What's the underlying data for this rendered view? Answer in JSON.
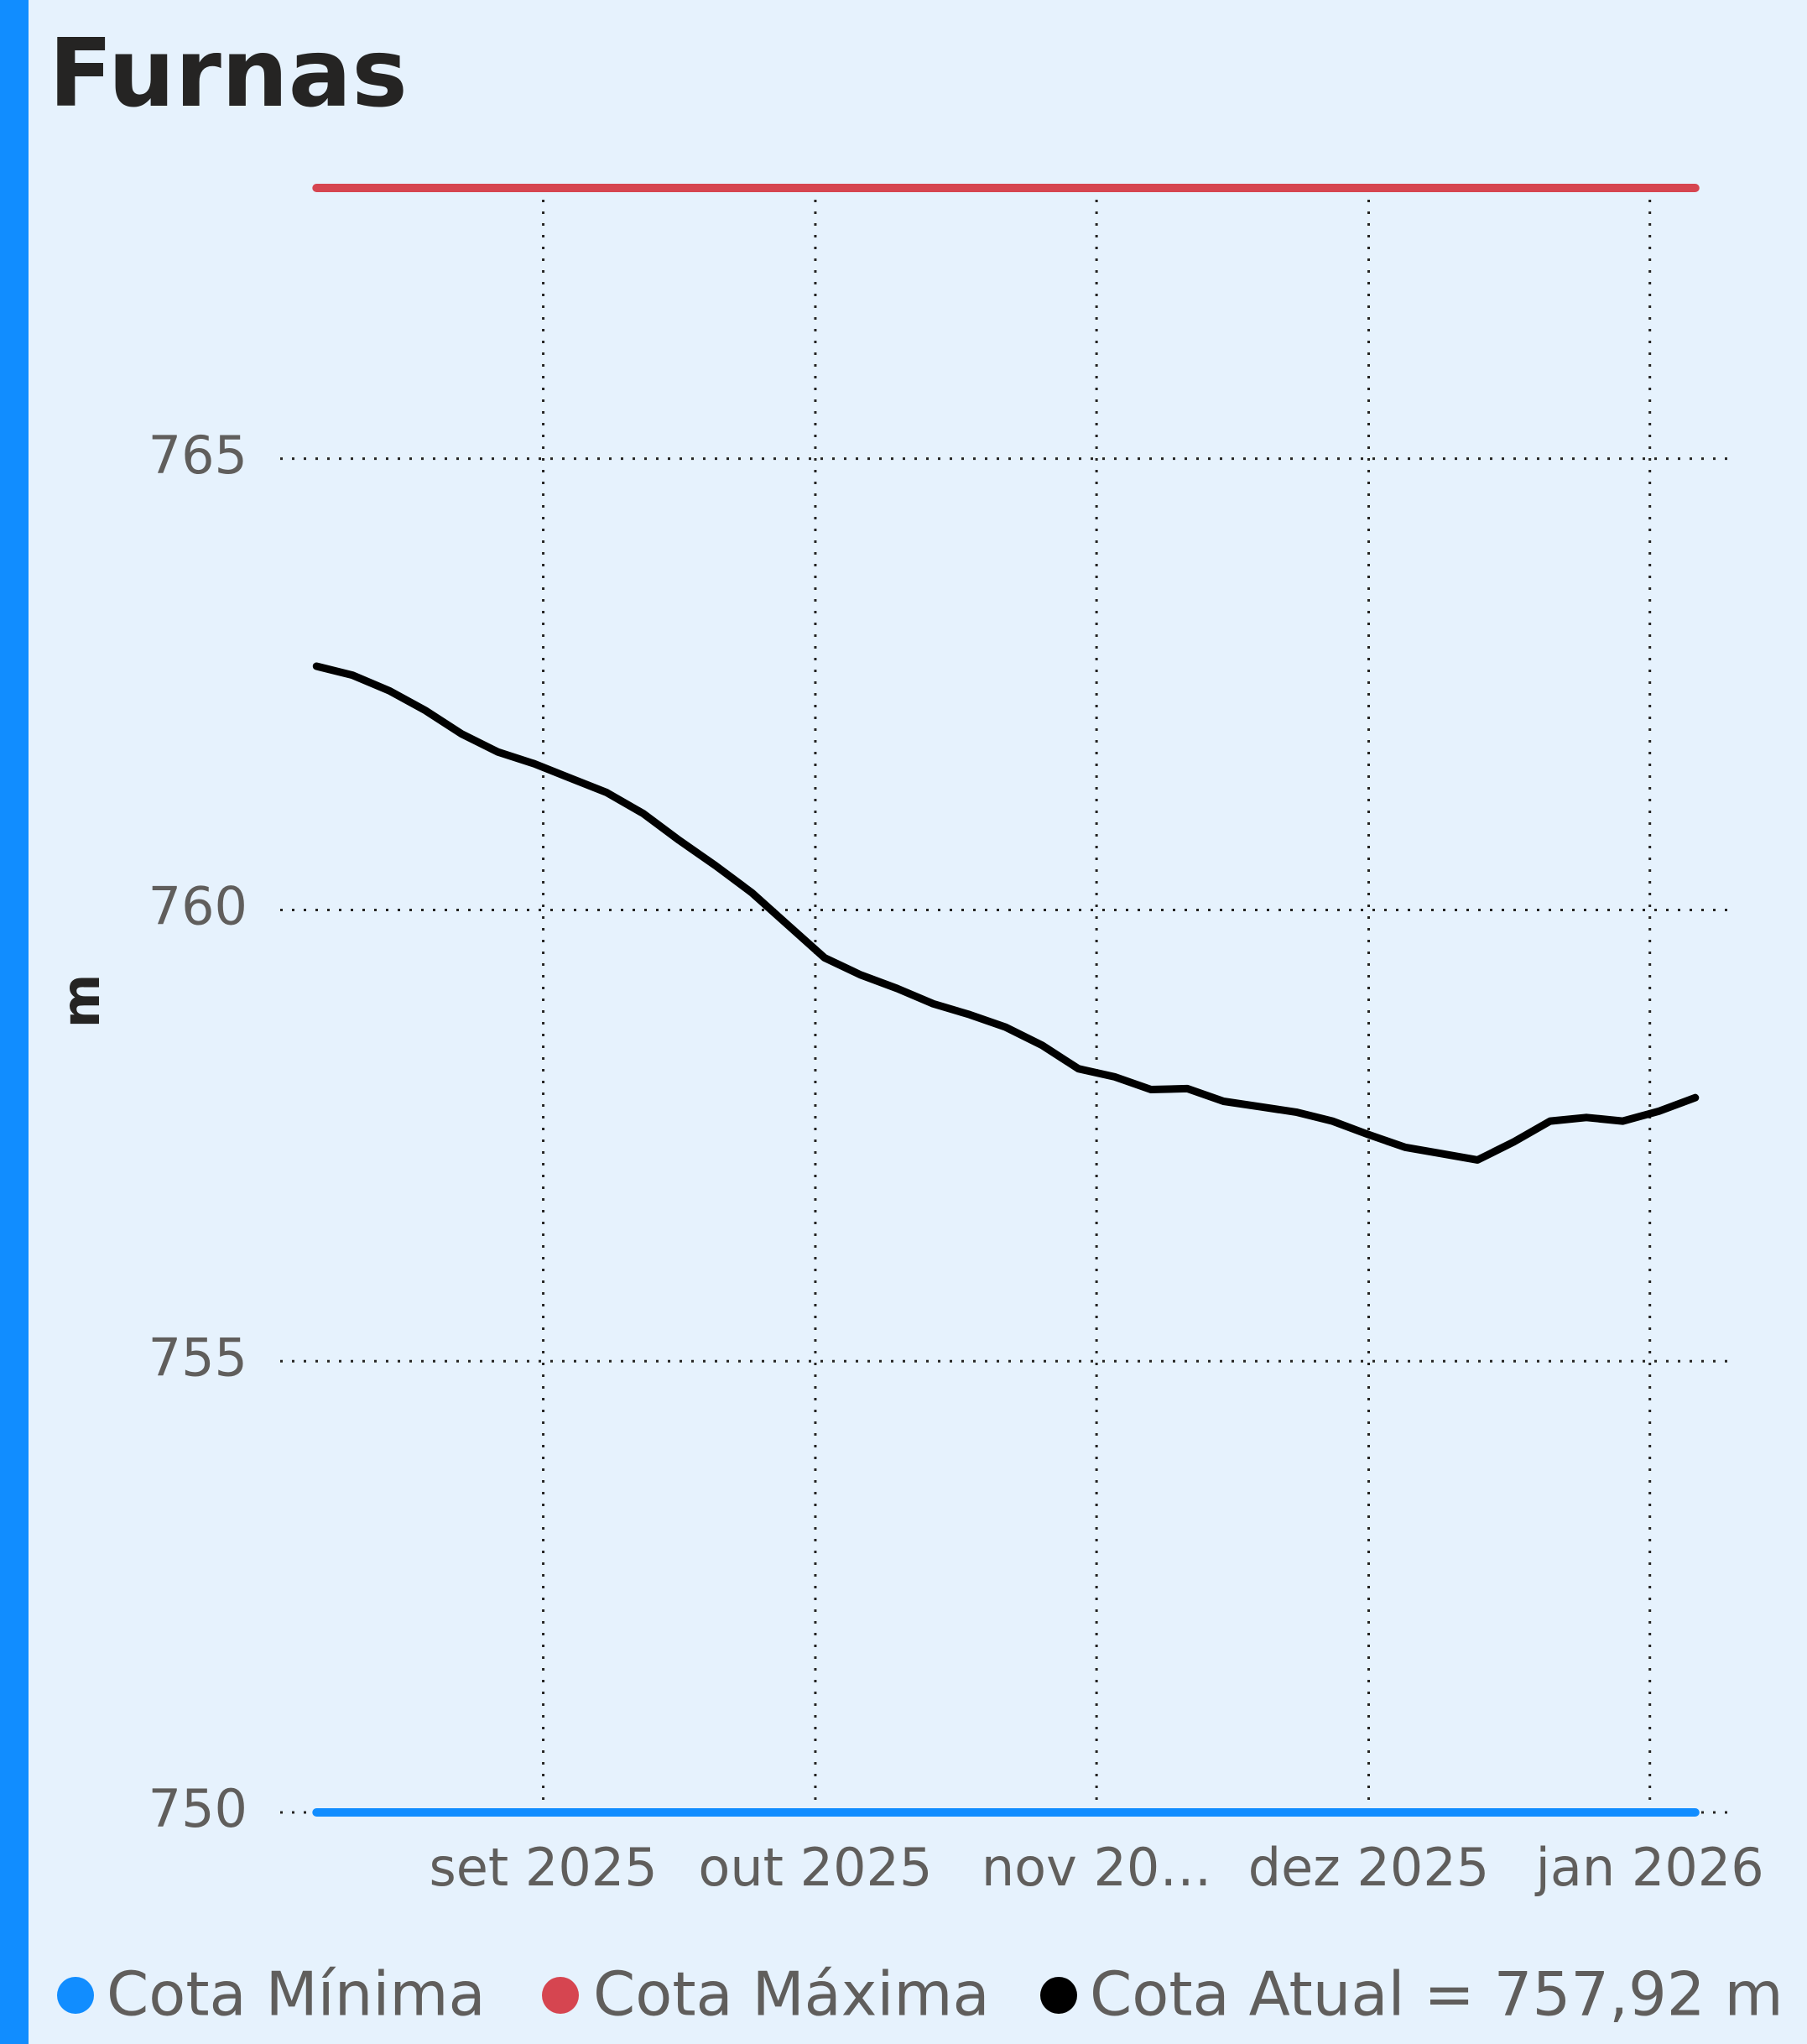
{
  "chart_data": {
    "type": "line",
    "title": "Furnas",
    "y_label": "m",
    "xlim": [
      -1,
      39
    ],
    "xticks": [
      {
        "value": 6.25,
        "label": "set 2025"
      },
      {
        "value": 13.75,
        "label": "out 2025"
      },
      {
        "value": 21.5,
        "label": "nov 20…"
      },
      {
        "value": 29,
        "label": "dez 2025"
      },
      {
        "value": 36.75,
        "label": "jan 2026"
      }
    ],
    "ylim": [
      750,
      768
    ],
    "yticks": [
      750,
      755,
      760,
      765
    ],
    "grid": true,
    "series": [
      {
        "name": "Cota Mínima",
        "color": "#118dff",
        "values": [
          750,
          750,
          750,
          750,
          750,
          750,
          750,
          750,
          750,
          750,
          750,
          750,
          750,
          750,
          750,
          750,
          750,
          750,
          750,
          750,
          750,
          750,
          750,
          750,
          750,
          750,
          750,
          750,
          750,
          750,
          750,
          750,
          750,
          750,
          750,
          750,
          750,
          750,
          750
        ]
      },
      {
        "name": "Cota Máxima",
        "color": "#d64550",
        "values": [
          768,
          768,
          768,
          768,
          768,
          768,
          768,
          768,
          768,
          768,
          768,
          768,
          768,
          768,
          768,
          768,
          768,
          768,
          768,
          768,
          768,
          768,
          768,
          768,
          768,
          768,
          768,
          768,
          768,
          768,
          768,
          768,
          768,
          768,
          768,
          768,
          768,
          768,
          768
        ]
      },
      {
        "name": "Cota Atual = 757,92 m",
        "color": "#000000",
        "values": [
          762.7,
          762.6,
          762.43,
          762.21,
          761.95,
          761.75,
          761.62,
          761.46,
          761.3,
          761.07,
          760.77,
          760.49,
          760.19,
          759.83,
          759.47,
          759.28,
          759.13,
          758.96,
          758.84,
          758.7,
          758.5,
          758.24,
          758.15,
          758.01,
          758.02,
          757.88,
          757.82,
          757.76,
          757.66,
          757.51,
          757.37,
          757.3,
          757.23,
          757.43,
          757.66,
          757.7,
          757.66,
          757.77,
          757.92
        ]
      }
    ]
  }
}
